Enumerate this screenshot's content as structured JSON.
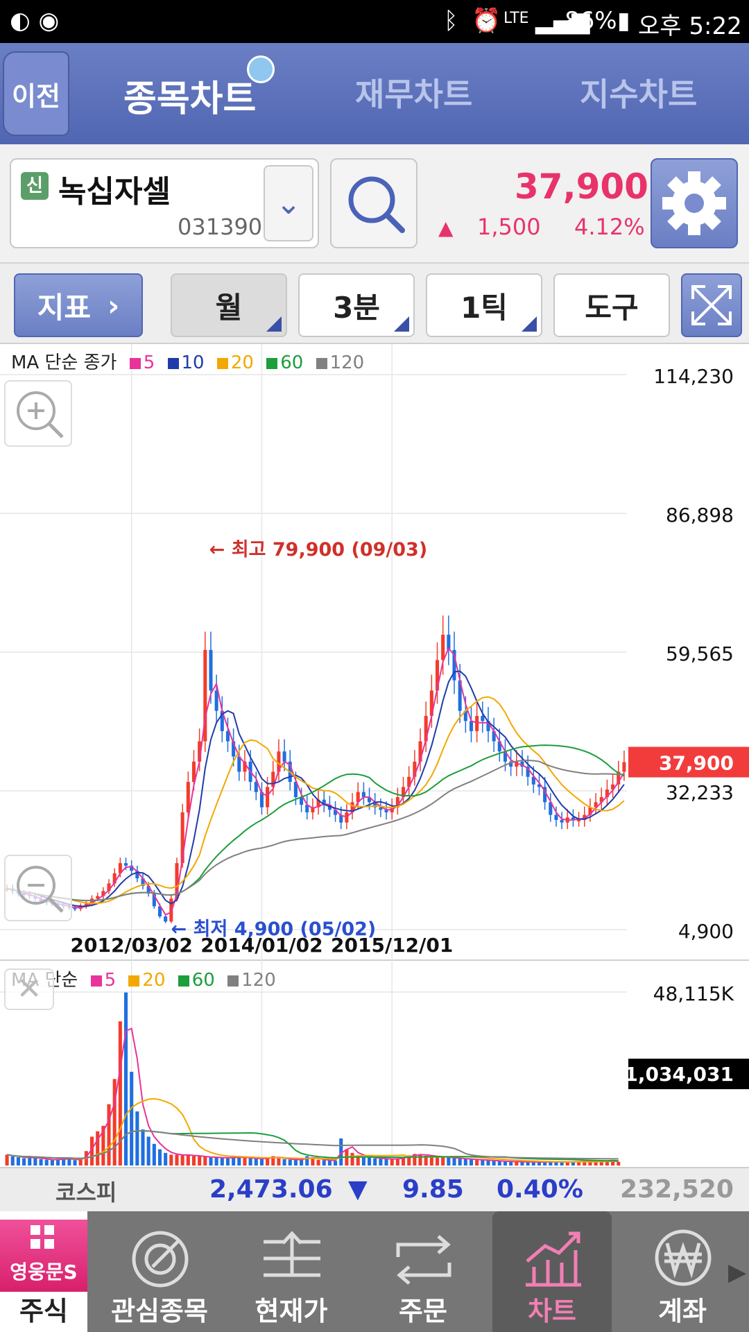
{
  "status_bar": {
    "battery": "86%",
    "time": "오후 5:22",
    "network": "LTE"
  },
  "header": {
    "back_label": "이전",
    "tabs": [
      {
        "label": "종목차트",
        "active": true
      },
      {
        "label": "재무차트",
        "active": false
      },
      {
        "label": "지수차트",
        "active": false
      }
    ]
  },
  "stock": {
    "badge": "신",
    "name": "녹십자셀",
    "code": "031390",
    "price": "37,900",
    "change": "1,500",
    "change_pct": "4.12%",
    "up_color": "#e8336a"
  },
  "toolbar": {
    "indicator_label": "지표",
    "period_label": "월",
    "minute_label": "3분",
    "tick_label": "1틱",
    "tools_label": "도구"
  },
  "price_chart_legend": {
    "title": "MA 단순 종가",
    "items": [
      {
        "label": "5",
        "color": "#e8339a"
      },
      {
        "label": "10",
        "color": "#1f3caa"
      },
      {
        "label": "20",
        "color": "#f2a800"
      },
      {
        "label": "60",
        "color": "#1c9e3c"
      },
      {
        "label": "120",
        "color": "#808080"
      }
    ]
  },
  "volume_chart_legend": {
    "title": "MA 단순",
    "items": [
      {
        "label": "5",
        "color": "#e8339a"
      },
      {
        "label": "20",
        "color": "#f2a800"
      },
      {
        "label": "60",
        "color": "#1c9e3c"
      },
      {
        "label": "120",
        "color": "#808080"
      }
    ]
  },
  "chart_data": [
    {
      "type": "candlestick",
      "y_ticks": [
        "114,230",
        "86,898",
        "59,565",
        "32,233",
        "4,900"
      ],
      "ylim": [
        4900,
        114230
      ],
      "x_ticks": [
        "2012/03/02",
        "2014/01/02",
        "2015/12/01"
      ],
      "current_price_label": "37,900",
      "annotations": {
        "high": "← 최고 79,900 (09/03)",
        "low": "← 최저 4,900 (05/02)"
      },
      "closes": [
        13000,
        12500,
        12000,
        11800,
        11500,
        11000,
        10500,
        10200,
        10000,
        9800,
        9500,
        9200,
        9000,
        9500,
        10000,
        11000,
        11500,
        12500,
        14000,
        16000,
        18000,
        17500,
        16500,
        15000,
        13500,
        12000,
        9500,
        7500,
        6500,
        11000,
        18000,
        28000,
        34000,
        38000,
        42000,
        60000,
        52000,
        48000,
        44000,
        42000,
        39000,
        36000,
        38000,
        34000,
        32000,
        29000,
        33000,
        36000,
        40000,
        38000,
        34000,
        31000,
        29500,
        28000,
        29000,
        30500,
        29500,
        28500,
        27500,
        26000,
        28000,
        30000,
        32000,
        31000,
        30000,
        29000,
        28500,
        28000,
        29000,
        31000,
        33000,
        35000,
        38000,
        42000,
        47000,
        52000,
        58000,
        63000,
        60000,
        54000,
        48000,
        46000,
        44000,
        47000,
        46000,
        44000,
        42000,
        40000,
        38000,
        37000,
        38000,
        37000,
        35000,
        33500,
        33000,
        30000,
        27500,
        26500,
        26000,
        27000,
        26500,
        26500,
        27500,
        29000,
        30000,
        31000,
        32500,
        33500,
        36000,
        37900
      ],
      "volume_ylim": [
        0,
        48115
      ],
      "volume_top_label": "48,115K",
      "volume_current_label": "1,034,031",
      "volumes": [
        3000,
        2500,
        2300,
        2000,
        2400,
        2100,
        1800,
        1600,
        1500,
        1800,
        2000,
        1700,
        1500,
        1600,
        4000,
        8000,
        9500,
        11000,
        17000,
        24000,
        40000,
        48000,
        26000,
        15000,
        10000,
        8000,
        6000,
        4500,
        3500,
        3000,
        3000,
        2800,
        3000,
        2600,
        2500,
        2400,
        2200,
        2300,
        2100,
        2000,
        2500,
        2300,
        2100,
        2000,
        1900,
        1800,
        2200,
        2600,
        2000,
        1800,
        1600,
        1500,
        1800,
        2600,
        1900,
        1600,
        1500,
        1400,
        1300,
        7500,
        4500,
        3500,
        2800,
        2500,
        2200,
        2000,
        1900,
        1800,
        1700,
        2000,
        2400,
        2800,
        3200,
        3000,
        2700,
        2600,
        2400,
        2300,
        2200,
        2000,
        1900,
        1800,
        1700,
        1600,
        1500,
        1400,
        1300,
        1200,
        1100,
        1100,
        1000,
        1050,
        1000,
        950,
        950,
        1000,
        1100,
        1000,
        950,
        1000,
        1050,
        1100,
        1150,
        1100,
        1200,
        1300,
        1400,
        1500,
        1034
      ]
    }
  ],
  "kospi": {
    "label": "코스피",
    "value": "2,473.06",
    "change": "9.85",
    "change_pct": "0.40%",
    "volume": "232,520",
    "down_color": "#2a3ec8"
  },
  "bottom_nav": {
    "items": [
      {
        "label": "주식",
        "active": true,
        "brand": "영웅문S"
      },
      {
        "label": "관심종목",
        "active": false
      },
      {
        "label": "현재가",
        "active": false
      },
      {
        "label": "주문",
        "active": false
      },
      {
        "label": "차트",
        "active": true
      },
      {
        "label": "계좌",
        "active": false
      }
    ]
  }
}
